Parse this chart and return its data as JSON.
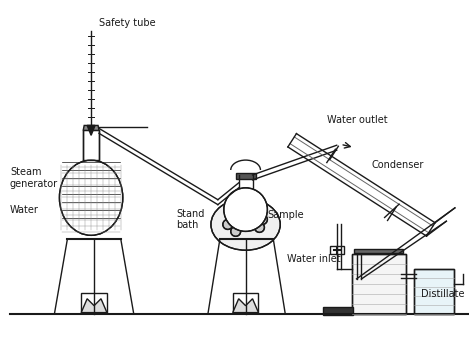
{
  "title": "",
  "bg_color": "#ffffff",
  "labels": {
    "safety_tube": "Safety tube",
    "steam_generator": "Steam\ngenerator",
    "water": "Water",
    "stand_bath": "Stand\nbath",
    "sample": "Sample",
    "water_outlet": "Water outlet",
    "condenser": "Condenser",
    "water_inlet": "Water inlet",
    "distillate": "Distillate"
  },
  "line_color": "#1a1a1a",
  "text_color": "#1a1a1a"
}
